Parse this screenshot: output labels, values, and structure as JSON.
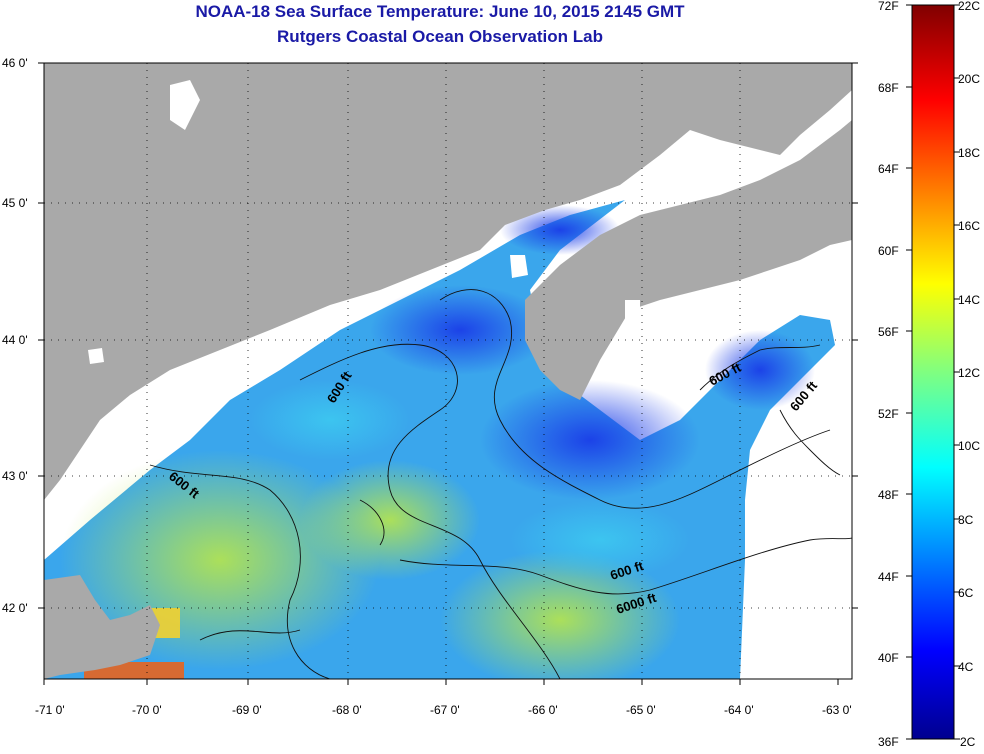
{
  "header": {
    "title": "NOAA-18 Sea Surface Temperature:  June 10, 2015 2145 GMT",
    "subtitle": "Rutgers Coastal Ocean Observation Lab"
  },
  "map": {
    "lat_ticks": [
      "46 0'",
      "45 0'",
      "44 0'",
      "43 0'",
      "42 0'"
    ],
    "lon_ticks": [
      "-71 0'",
      "-70 0'",
      "-69 0'",
      "-68 0'",
      "-67 0'",
      "-66 0'",
      "-65 0'",
      "-64 0'",
      "-63 0'"
    ],
    "contour_labels": [
      "600 ft",
      "600 ft",
      "600 ft",
      "600 ft",
      "600 ft",
      "6000 ft"
    ],
    "land_color": "#a9a9a9",
    "cloud_color": "#ffffff"
  },
  "colorbar": {
    "fahrenheit": [
      "72F",
      "68F",
      "64F",
      "60F",
      "56F",
      "52F",
      "48F",
      "44F",
      "40F",
      "36F"
    ],
    "celsius": [
      "22C",
      "20C",
      "18C",
      "16C",
      "14C",
      "12C",
      "10C",
      "8C",
      "6C",
      "4C",
      "2C"
    ]
  }
}
